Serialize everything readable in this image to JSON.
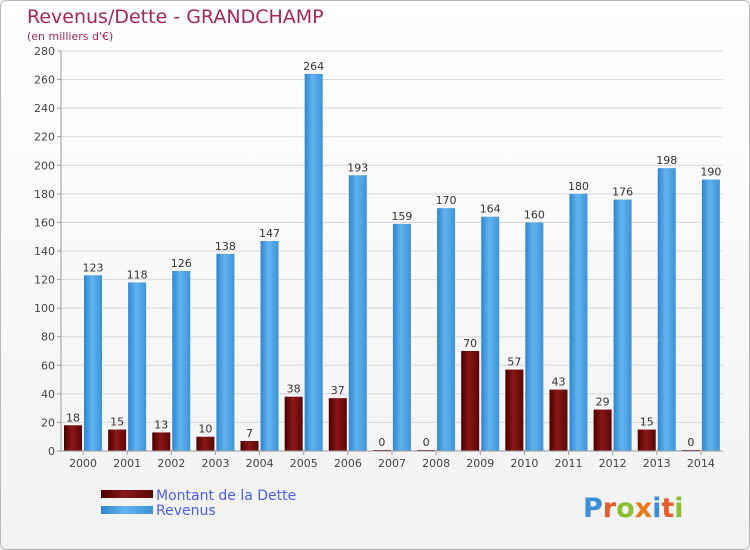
{
  "chart_data": {
    "type": "bar",
    "title": "Revenus/Dette - GRANDCHAMP",
    "subtitle": "(en milliers d'€)",
    "categories": [
      "2000",
      "2001",
      "2002",
      "2003",
      "2004",
      "2005",
      "2006",
      "2007",
      "2008",
      "2009",
      "2010",
      "2011",
      "2012",
      "2013",
      "2014"
    ],
    "series": [
      {
        "name": "Montant de la Dette",
        "color": "#7a0d0d",
        "values": [
          18,
          15,
          13,
          10,
          7,
          38,
          37,
          0,
          0,
          70,
          57,
          43,
          29,
          15,
          0
        ]
      },
      {
        "name": "Revenus",
        "color": "#4aa3e6",
        "values": [
          123,
          118,
          126,
          138,
          147,
          264,
          193,
          159,
          170,
          164,
          160,
          180,
          176,
          198,
          190
        ]
      }
    ],
    "ylim": [
      0,
      280
    ],
    "yticks": [
      0,
      20,
      40,
      60,
      80,
      100,
      120,
      140,
      160,
      180,
      200,
      220,
      240,
      260,
      280
    ],
    "grid": true,
    "legend": "bottom-left"
  },
  "logo": {
    "text": "Proxiti",
    "letter_colors": [
      "#3a8fd8",
      "#e85a2b",
      "#8bbf2f",
      "#e87a1a",
      "#3a8fd8",
      "#e85a2b",
      "#8bbf2f"
    ]
  }
}
